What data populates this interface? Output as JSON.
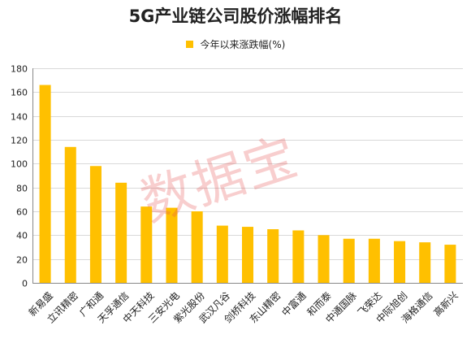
{
  "chart_data": {
    "type": "bar",
    "title": "5G产业链公司股价涨幅排名",
    "legend": {
      "label": "今年以来涨跌幅(%)",
      "position": "top"
    },
    "categories": [
      "新易盛",
      "立讯精密",
      "广和通",
      "天孚通信",
      "中天科技",
      "三安光电",
      "紫光股份",
      "武汉凡谷",
      "剑桥科技",
      "东山精密",
      "中富通",
      "和而泰",
      "中通国脉",
      "飞荣达",
      "中际旭创",
      "海格通信",
      "高新兴"
    ],
    "series": [
      {
        "name": "今年以来涨跌幅(%)",
        "values": [
          166,
          114,
          98,
          84,
          64,
          63,
          60,
          48,
          47,
          45,
          44,
          40,
          37,
          37,
          35,
          34,
          32
        ]
      }
    ],
    "ylim": [
      0,
      180
    ],
    "yticks": [
      0,
      20,
      40,
      60,
      80,
      100,
      120,
      140,
      160,
      180
    ],
    "grid": true,
    "bar_color": "#FFC000"
  },
  "watermark": "数据宝"
}
